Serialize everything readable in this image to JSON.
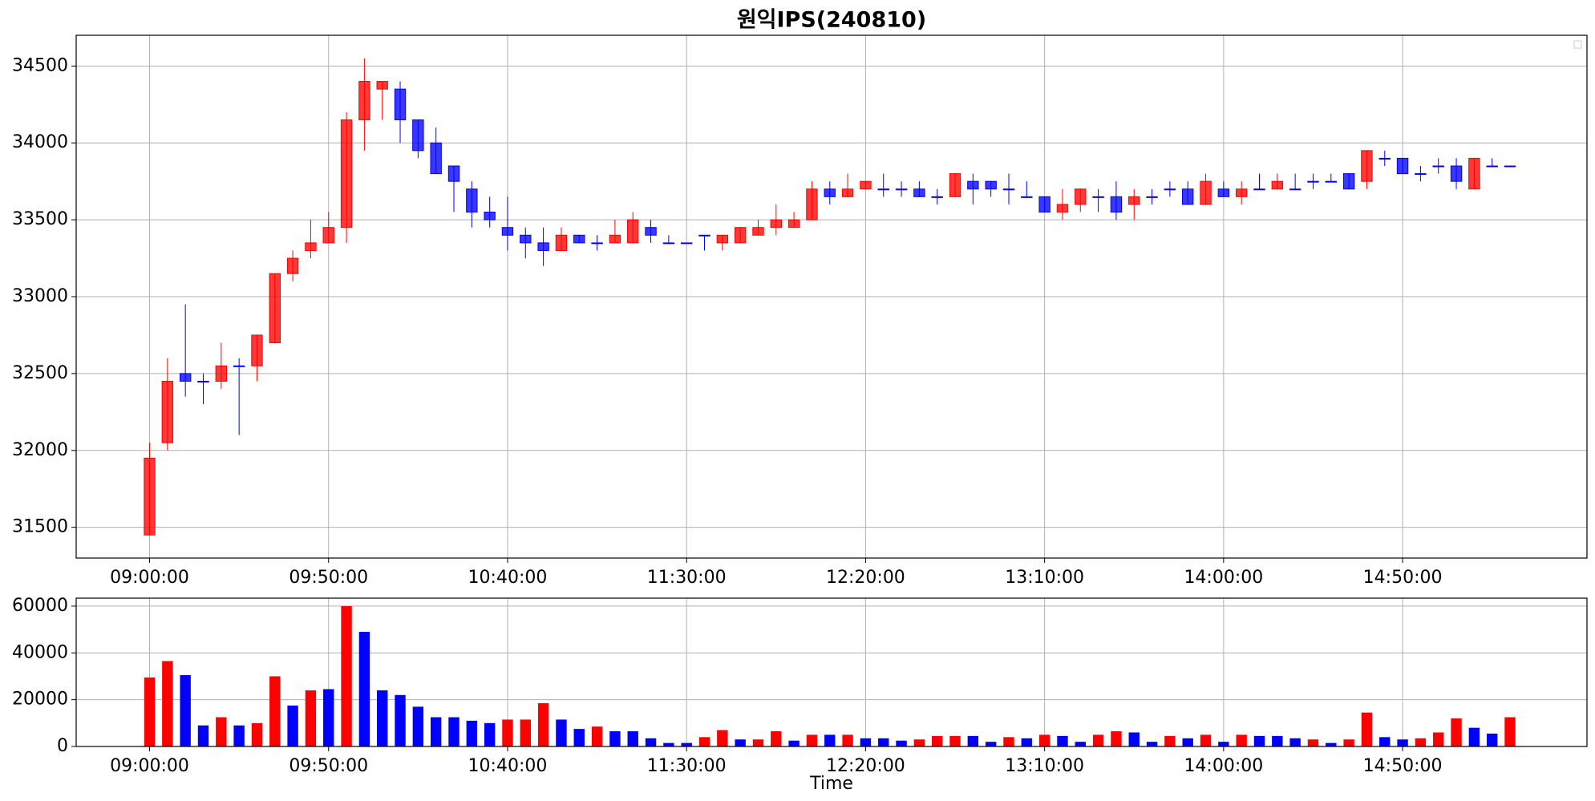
{
  "chart_data": [
    {
      "type": "candlestick",
      "title": "원익IPS(240810)",
      "categories": [
        "09:00:00",
        null,
        null,
        null,
        null,
        null,
        null,
        null,
        null,
        null,
        "09:50:00",
        null,
        null,
        null,
        null,
        null,
        null,
        null,
        null,
        null,
        "10:40:00",
        null,
        null,
        null,
        null,
        null,
        null,
        null,
        null,
        null,
        "11:30:00",
        null,
        null,
        null,
        null,
        null,
        null,
        null,
        null,
        null,
        "12:20:00",
        null,
        null,
        null,
        null,
        null,
        null,
        null,
        null,
        null,
        "13:10:00",
        null,
        null,
        null,
        null,
        null,
        null,
        null,
        null,
        null,
        "14:00:00",
        null,
        null,
        null,
        null,
        null,
        null,
        null,
        null,
        null,
        "14:50:00",
        null,
        null,
        null,
        null,
        null,
        null
      ],
      "open": [
        31450,
        32050,
        32500,
        32450,
        32450,
        32550,
        32550,
        32700,
        33150,
        33300,
        33350,
        33450,
        34150,
        34350,
        34350,
        34150,
        34000,
        33850,
        33700,
        33550,
        33450,
        33400,
        33350,
        33300,
        33400,
        33350,
        33350,
        33350,
        33450,
        33350,
        33350,
        33400,
        33350,
        33350,
        33400,
        33450,
        33450,
        33500,
        33700,
        33650,
        33700,
        33700,
        33700,
        33700,
        33650,
        33650,
        33750,
        33750,
        33700,
        33650,
        33650,
        33550,
        33600,
        33650,
        33650,
        33600,
        33650,
        33700,
        33700,
        33600,
        33700,
        33650,
        33700,
        33700,
        33700,
        33750,
        33750,
        33800,
        33750,
        33900,
        33900,
        33800,
        33850,
        33850,
        33700,
        33850,
        33850
      ],
      "high": [
        32050,
        32600,
        32950,
        32500,
        32700,
        32600,
        32750,
        33150,
        33300,
        33500,
        33550,
        34200,
        34550,
        34400,
        34400,
        34150,
        34100,
        33850,
        33750,
        33650,
        33650,
        33450,
        33450,
        33450,
        33400,
        33400,
        33500,
        33550,
        33500,
        33400,
        33350,
        33400,
        33400,
        33450,
        33500,
        33600,
        33550,
        33750,
        33750,
        33800,
        33750,
        33800,
        33750,
        33750,
        33700,
        33800,
        33800,
        33750,
        33800,
        33750,
        33650,
        33700,
        33700,
        33700,
        33750,
        33700,
        33700,
        33750,
        33750,
        33800,
        33750,
        33750,
        33800,
        33800,
        33800,
        33800,
        33800,
        33800,
        33950,
        33950,
        33900,
        33850,
        33900,
        33900,
        33900,
        33900,
        33850
      ],
      "low": [
        31450,
        32000,
        32350,
        32300,
        32400,
        32100,
        32450,
        32700,
        33100,
        33250,
        33350,
        33350,
        33950,
        34150,
        34000,
        33900,
        33800,
        33550,
        33450,
        33450,
        33300,
        33250,
        33200,
        33300,
        33350,
        33300,
        33350,
        33350,
        33350,
        33350,
        33350,
        33300,
        33300,
        33350,
        33400,
        33400,
        33450,
        33500,
        33600,
        33650,
        33700,
        33650,
        33650,
        33650,
        33600,
        33650,
        33600,
        33650,
        33600,
        33650,
        33550,
        33500,
        33550,
        33550,
        33500,
        33500,
        33600,
        33650,
        33600,
        33600,
        33650,
        33600,
        33700,
        33700,
        33700,
        33700,
        33750,
        33700,
        33700,
        33850,
        33800,
        33750,
        33800,
        33700,
        33700,
        33850,
        33850
      ],
      "close": [
        31950,
        32450,
        32450,
        32450,
        32550,
        32550,
        32750,
        33150,
        33250,
        33350,
        33450,
        34150,
        34400,
        34400,
        34150,
        33950,
        33800,
        33750,
        33550,
        33500,
        33400,
        33350,
        33300,
        33400,
        33350,
        33350,
        33400,
        33500,
        33400,
        33350,
        33350,
        33400,
        33400,
        33450,
        33450,
        33500,
        33500,
        33700,
        33650,
        33700,
        33750,
        33700,
        33700,
        33650,
        33650,
        33800,
        33700,
        33700,
        33700,
        33650,
        33550,
        33600,
        33700,
        33650,
        33550,
        33650,
        33650,
        33700,
        33600,
        33750,
        33650,
        33700,
        33700,
        33750,
        33700,
        33750,
        33750,
        33700,
        33950,
        33900,
        33800,
        33800,
        33850,
        33750,
        33900,
        33850,
        33850
      ],
      "up_color": "#ff0000",
      "down_color": "#0000ff",
      "xlim": [
        -4.1,
        80.3
      ],
      "ylim": [
        31300,
        34700
      ],
      "yticks": [
        31500,
        32000,
        32500,
        33000,
        33500,
        34000,
        34500
      ],
      "grid": true
    },
    {
      "type": "bar",
      "xlabel": "Time",
      "categories": [
        "09:00:00",
        null,
        null,
        null,
        null,
        null,
        null,
        null,
        null,
        null,
        "09:50:00",
        null,
        null,
        null,
        null,
        null,
        null,
        null,
        null,
        null,
        "10:40:00",
        null,
        null,
        null,
        null,
        null,
        null,
        null,
        null,
        null,
        "11:30:00",
        null,
        null,
        null,
        null,
        null,
        null,
        null,
        null,
        null,
        "12:20:00",
        null,
        null,
        null,
        null,
        null,
        null,
        null,
        null,
        null,
        "13:10:00",
        null,
        null,
        null,
        null,
        null,
        null,
        null,
        null,
        null,
        "14:00:00",
        null,
        null,
        null,
        null,
        null,
        null,
        null,
        null,
        null,
        "14:50:00",
        null,
        null,
        null,
        null,
        null,
        null
      ],
      "values": [
        29500,
        36500,
        30500,
        9000,
        12500,
        9000,
        10000,
        30000,
        17500,
        24000,
        24500,
        60000,
        49000,
        24000,
        22000,
        17000,
        12500,
        12500,
        11000,
        10000,
        11500,
        11500,
        18500,
        11500,
        7500,
        8500,
        6500,
        6500,
        3500,
        1500,
        1500,
        4000,
        7000,
        3000,
        3000,
        6500,
        2500,
        5000,
        5000,
        5000,
        3500,
        3500,
        2500,
        3000,
        4500,
        4500,
        4500,
        2000,
        4000,
        3500,
        5000,
        4500,
        2000,
        5000,
        6500,
        6000,
        2000,
        4500,
        3500,
        5000,
        2000,
        5000,
        4500,
        4500,
        3500,
        3000,
        1500,
        3000,
        14500,
        4000,
        3000,
        3500,
        6000,
        12000,
        8000,
        5500,
        12500
      ],
      "colors": [
        "#ff0000",
        "#ff0000",
        "#0000ff",
        "#0000ff",
        "#ff0000",
        "#0000ff",
        "#ff0000",
        "#ff0000",
        "#0000ff",
        "#ff0000",
        "#0000ff",
        "#ff0000",
        "#0000ff",
        "#0000ff",
        "#0000ff",
        "#0000ff",
        "#0000ff",
        "#0000ff",
        "#0000ff",
        "#0000ff",
        "#ff0000",
        "#ff0000",
        "#ff0000",
        "#0000ff",
        "#0000ff",
        "#ff0000",
        "#0000ff",
        "#0000ff",
        "#0000ff",
        "#0000ff",
        "#0000ff",
        "#ff0000",
        "#ff0000",
        "#0000ff",
        "#ff0000",
        "#ff0000",
        "#0000ff",
        "#ff0000",
        "#0000ff",
        "#ff0000",
        "#0000ff",
        "#0000ff",
        "#0000ff",
        "#ff0000",
        "#ff0000",
        "#ff0000",
        "#0000ff",
        "#0000ff",
        "#ff0000",
        "#0000ff",
        "#ff0000",
        "#0000ff",
        "#0000ff",
        "#ff0000",
        "#ff0000",
        "#0000ff",
        "#0000ff",
        "#ff0000",
        "#0000ff",
        "#ff0000",
        "#0000ff",
        "#ff0000",
        "#0000ff",
        "#0000ff",
        "#0000ff",
        "#ff0000",
        "#0000ff",
        "#ff0000",
        "#ff0000",
        "#0000ff",
        "#0000ff",
        "#ff0000",
        "#ff0000",
        "#ff0000",
        "#0000ff",
        "#0000ff",
        "#ff0000"
      ],
      "xlim": [
        -4.1,
        80.3
      ],
      "ylim": [
        0,
        63400
      ],
      "yticks": [
        0,
        20000,
        40000,
        60000
      ],
      "grid": true
    }
  ]
}
